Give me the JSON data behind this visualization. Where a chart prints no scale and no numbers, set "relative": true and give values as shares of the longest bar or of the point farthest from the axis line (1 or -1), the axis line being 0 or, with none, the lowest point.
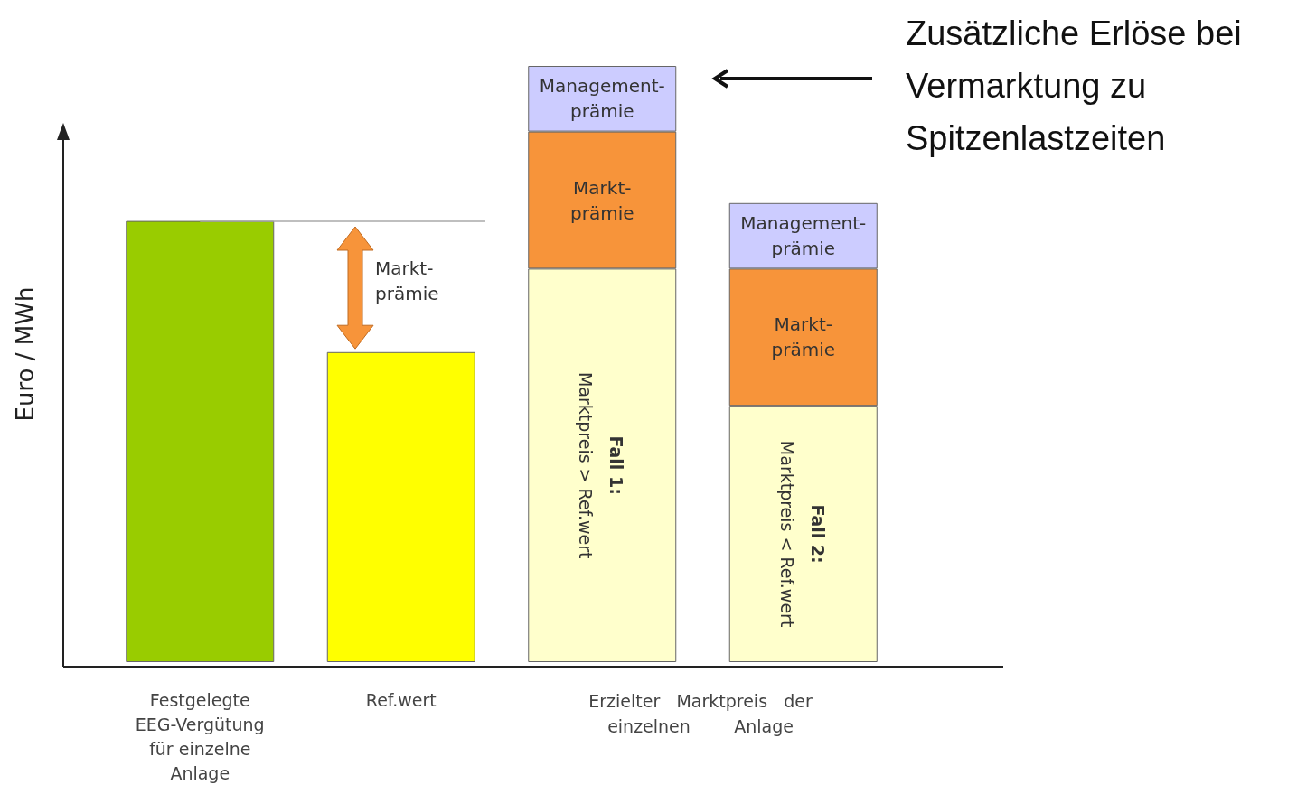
{
  "chart_data": {
    "type": "bar",
    "relative": true,
    "stacked": true,
    "ylabel": "Euro / MWh",
    "categories": [
      "Festgelegte\nEEG-Vergütung\nfür einzelne\nAnlage",
      "Ref.wert",
      null,
      null
    ],
    "series": [
      {
        "colors": [
          "#99cc00",
          "#ffff00",
          "#ffffcc",
          "#ffffcc"
        ],
        "values": [
          0.74,
          0.52,
          0.66,
          0.43
        ]
      },
      {
        "name": "Markt-\nprämie",
        "color": "#f7943a",
        "values": [
          null,
          null,
          0.23,
          0.23
        ]
      },
      {
        "name": "Management-\nprämie",
        "color": "#ccccff",
        "values": [
          null,
          null,
          0.11,
          0.11
        ]
      }
    ],
    "ref_lines": [
      {
        "axis": "y",
        "value": 0.74,
        "color": "#aaaaaa"
      }
    ],
    "annotations": [
      "Zusätzliche Erlöse bei\nVermarktung zu\nSpitzenlastzeiten",
      "Erzielter   Marktpreis   der\neinzelnen        Anlage",
      "Fall 1:\nMarktpreis > Ref.wert",
      "Fall 2:\nMarktpreis < Ref.wert",
      "Markt-\nprämie"
    ],
    "legend": false,
    "grid": false
  }
}
